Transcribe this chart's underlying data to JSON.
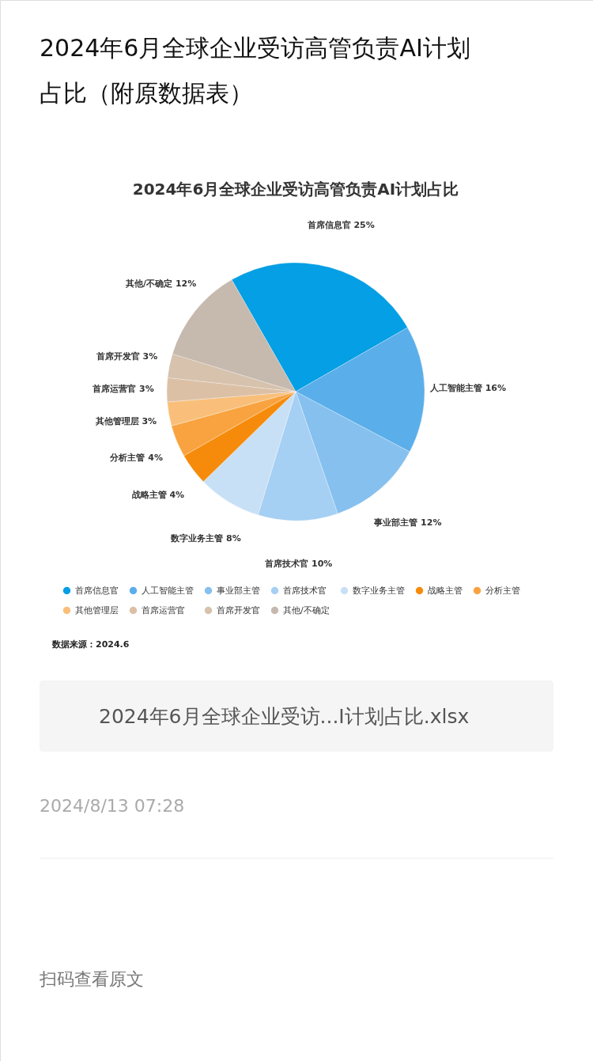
{
  "chart_data": {
    "type": "pie",
    "title": "2024年6月全球企业受访高管负责AI计划占比（附原数据表）",
    "subtitle": "2024年6月全球企业受访高管负责AI计划占比",
    "categories": [
      "首席信息官",
      "人工智能主管",
      "事业部主管",
      "首席技术官",
      "数字业务主管",
      "战略主管",
      "分析主管",
      "其他管理层",
      "首席运营官",
      "首席开发官",
      "其他/不确定"
    ],
    "values": [
      25,
      16,
      12,
      10,
      8,
      4,
      4,
      3,
      3,
      3,
      12
    ],
    "value_labels": [
      "25%",
      "16%",
      "12%",
      "10%",
      "8%",
      "4%",
      "4%",
      "3%",
      "3%",
      "3%",
      "12%"
    ],
    "colors": [
      "#049fe4",
      "#5aaeea",
      "#86c0ee",
      "#a5cff3",
      "#c8e0f5",
      "#f68b0b",
      "#f8a33f",
      "#f9bf7a",
      "#dcc0a6",
      "#d6c2ad",
      "#c6b9ae"
    ],
    "legend": "bottom",
    "annotations": [
      "数据来源：2024.6",
      "2024年6月全球企业受访...I计划占比.xlsx",
      "2024/8/13 07:28",
      "扫码查看原文"
    ]
  }
}
